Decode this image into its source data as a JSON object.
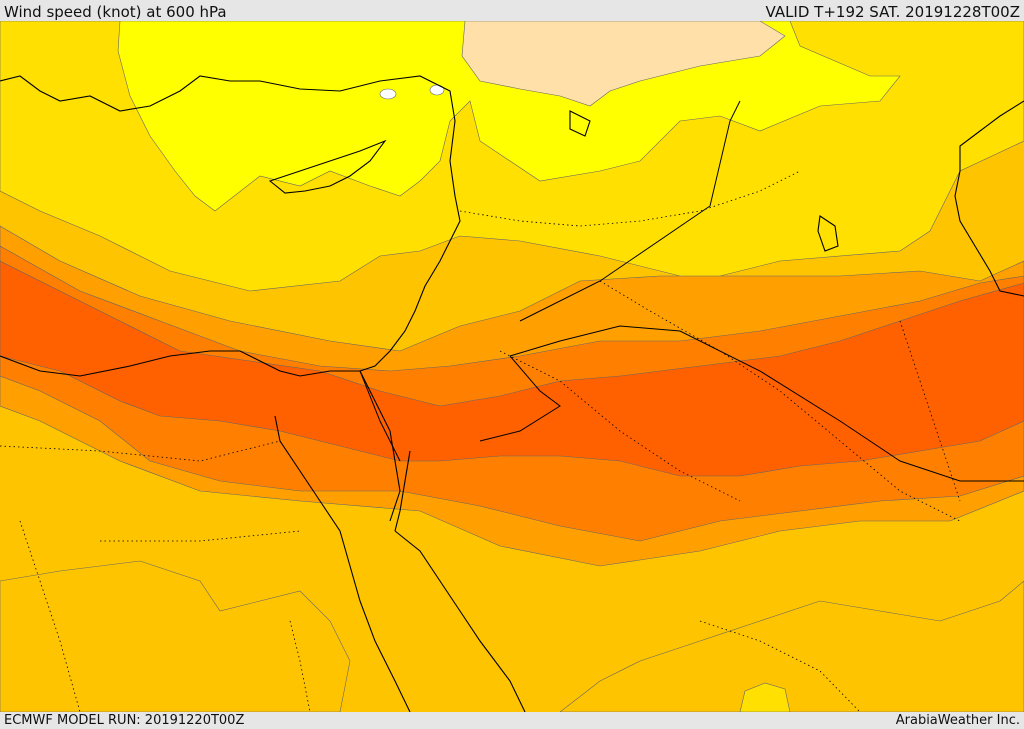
{
  "header": {
    "title": "Wind speed (knot) at 600 hPa",
    "valid": "VALID T+192 SAT. 20191228T00Z"
  },
  "footer": {
    "model_run": "ECMWF MODEL RUN: 20191220T00Z",
    "credit": "ArabiaWeather Inc."
  },
  "map": {
    "field": "wind speed",
    "level": "600 hPa",
    "units": "knot",
    "colors": {
      "calm": "#ffffff",
      "very_light": "#ffe0a8",
      "light": "#ffff00",
      "light_moderate": "#ffe000",
      "moderate": "#ffc400",
      "moderate_strong": "#ffa000",
      "strong": "#ff8000",
      "very_strong": "#ff6000",
      "coast_line": "#000000",
      "border_line": "#000000"
    }
  }
}
